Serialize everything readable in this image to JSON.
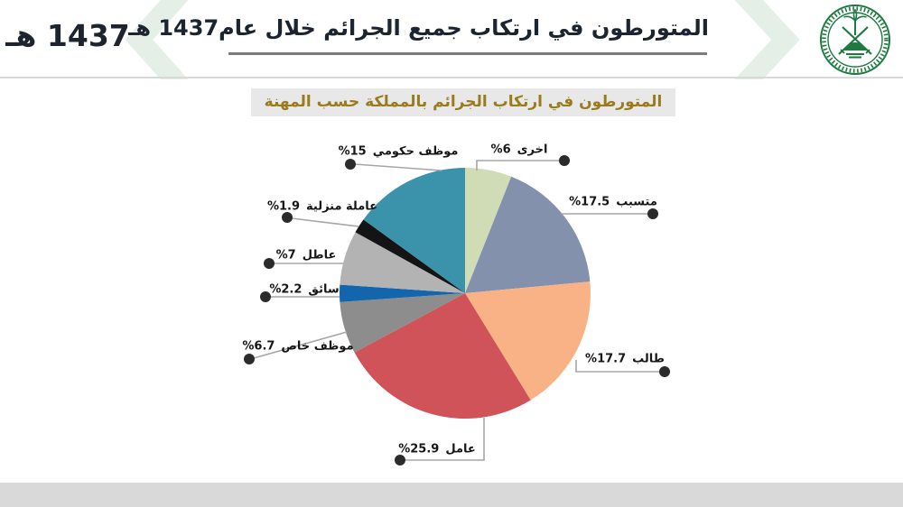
{
  "header": {
    "year_label": "1437 هـ",
    "title": "المتورطون في ارتكاب جميع الجرائم خلال عام1437 هـ"
  },
  "logo": {
    "name": "ministry-of-interior-emblem",
    "color": "#1e7a40"
  },
  "decor": {
    "chevron_color": "#e4efe7",
    "underline_color": "#7c7c7c",
    "footer_color": "#d9d9d9"
  },
  "chart_data": {
    "type": "pie",
    "title": "المتورطون في ارتكاب الجرائم بالمملكة حسب المهنة",
    "title_color": "#9a7b1c",
    "start_angle_deg": 0,
    "direction": "clockwise",
    "label_style": "outside-leader-lines",
    "leader_line_color": "#a6a6a6",
    "leader_dot_color": "#2b2b2b",
    "slices": [
      {
        "label": "اخرى",
        "value": 6,
        "pct_label": "%6",
        "color": "#cfdcb6"
      },
      {
        "label": "متسبب",
        "value": 17.5,
        "pct_label": "%17.5",
        "color": "#8491ad"
      },
      {
        "label": "طالب",
        "value": 17.7,
        "pct_label": "%17.7",
        "color": "#f8b285"
      },
      {
        "label": "عامل",
        "value": 25.9,
        "pct_label": "%25.9",
        "color": "#d0535a"
      },
      {
        "label": "موظف خاص",
        "value": 6.7,
        "pct_label": "%6.7",
        "color": "#8d8d8d"
      },
      {
        "label": "سائق",
        "value": 2.2,
        "pct_label": "%2.2",
        "color": "#1365ae"
      },
      {
        "label": "عاطل",
        "value": 7,
        "pct_label": "%7",
        "color": "#b3b3b3"
      },
      {
        "label": "عاملة منزلية",
        "value": 1.9,
        "pct_label": "%1.9",
        "color": "#141414"
      },
      {
        "label": "موظف حكومي",
        "value": 15,
        "pct_label": "%15",
        "color": "#3a93aa"
      }
    ]
  }
}
